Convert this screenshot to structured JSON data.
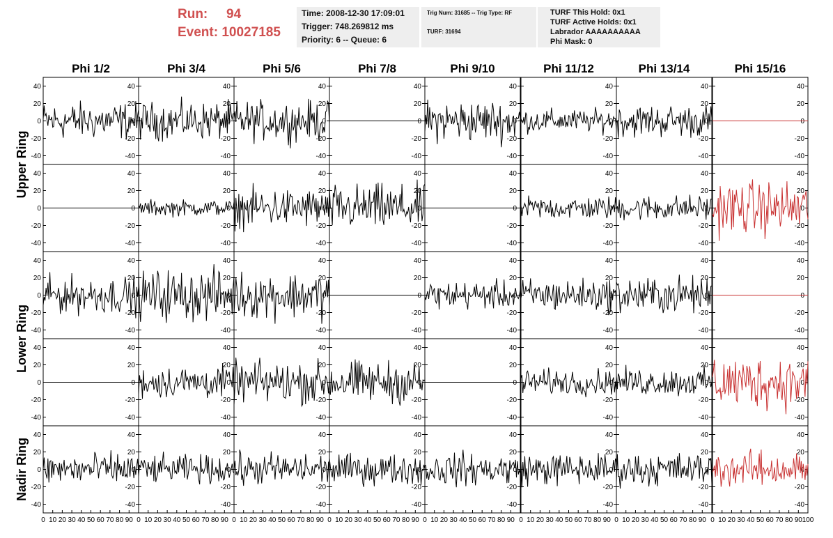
{
  "header": {
    "run_label": "Run:",
    "run_value": "94",
    "event_label": "Event:",
    "event_value": "10027185",
    "time": "Time: 2008-12-30 17:09:01",
    "trigger": "Trigger: 748.269812 ms",
    "priority": "Priority: 6 -- Queue: 6",
    "trig_num": "Trig Num: 31685 -- Trig Type: RF",
    "turf": "TURF: 31694",
    "turf_this_hold": "TURF This Hold: 0x1",
    "turf_active_holds": "TURF Active Holds: 0x1",
    "labrador": "Labrador AAAAAAAAAA",
    "phi_mask": "Phi Mask: 0"
  },
  "colors": {
    "trace": "#000000",
    "highlight": "#c83030",
    "title_red": "#d05050",
    "info_bg": "#eeeeee"
  },
  "chart_data": {
    "type": "line",
    "columns": [
      "Phi 1/2",
      "Phi 3/4",
      "Phi 5/6",
      "Phi 7/8",
      "Phi 9/10",
      "Phi 11/12",
      "Phi 13/14",
      "Phi 15/16"
    ],
    "ring_labels": [
      {
        "label": "Upper Ring",
        "rows": [
          0,
          1
        ]
      },
      {
        "label": "Lower Ring",
        "rows": [
          2,
          3
        ]
      },
      {
        "label": "Nadir Ring",
        "rows": [
          4
        ]
      }
    ],
    "xlim": [
      0,
      100
    ],
    "ylim": [
      -50,
      50
    ],
    "x_ticks": [
      "0",
      "10",
      "20",
      "30",
      "40",
      "50",
      "60",
      "70",
      "80",
      "90",
      "100"
    ],
    "y_ticks": [
      "40",
      "20",
      "0",
      "-20",
      "-40"
    ],
    "samples_per_trace": 100,
    "highlighted_column": "Phi 15/16",
    "panels": [
      [
        {
          "amp": 16
        },
        {
          "amp": 16
        },
        {
          "amp": 17
        },
        {
          "amp": 0
        },
        {
          "amp": 18
        },
        {
          "amp": 10
        },
        {
          "amp": 14
        },
        {
          "amp": 0
        }
      ],
      [
        {
          "amp": 0
        },
        {
          "amp": 7
        },
        {
          "amp": 17
        },
        {
          "amp": 20
        },
        {
          "amp": 0
        },
        {
          "amp": 10
        },
        {
          "amp": 11
        },
        {
          "amp": 23
        }
      ],
      [
        {
          "amp": 16
        },
        {
          "amp": 22
        },
        {
          "amp": 20
        },
        {
          "amp": 0
        },
        {
          "amp": 12
        },
        {
          "amp": 14
        },
        {
          "amp": 16
        },
        {
          "amp": 0
        }
      ],
      [
        {
          "amp": 0
        },
        {
          "amp": 14
        },
        {
          "amp": 18
        },
        {
          "amp": 18
        },
        {
          "amp": 0
        },
        {
          "amp": 11
        },
        {
          "amp": 12
        },
        {
          "amp": 23
        }
      ],
      [
        {
          "amp": 14
        },
        {
          "amp": 12
        },
        {
          "amp": 14
        },
        {
          "amp": 13
        },
        {
          "amp": 14
        },
        {
          "amp": 14
        },
        {
          "amp": 14
        },
        {
          "amp": 15
        }
      ]
    ]
  }
}
